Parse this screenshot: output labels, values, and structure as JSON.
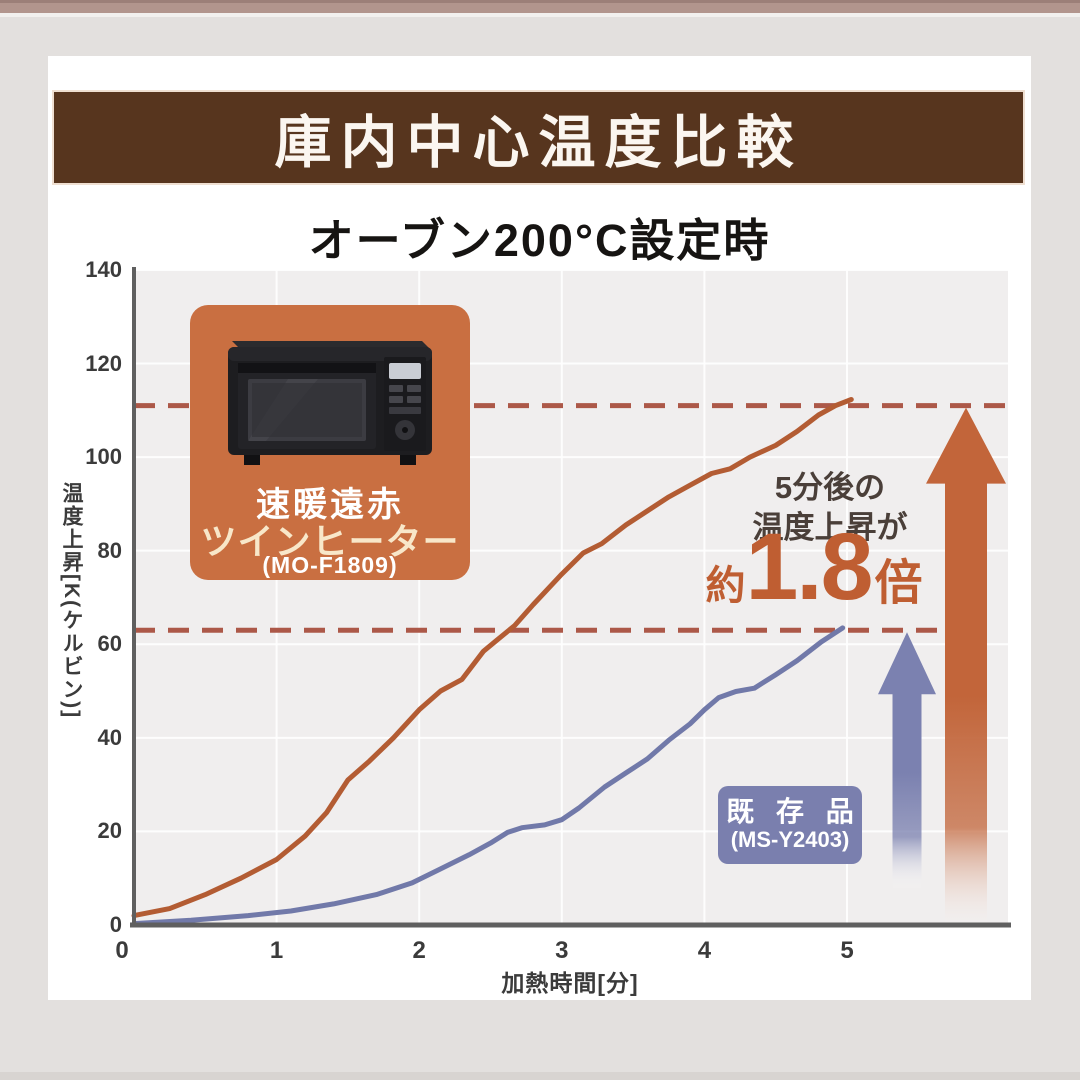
{
  "page": {
    "top_strip_color": "#b2958d",
    "background_color": "#e3e0de",
    "card_color": "#ffffff"
  },
  "header": {
    "title": "庫内中心温度比較",
    "background": "#57351e",
    "text_color": "#fbf6f0"
  },
  "subtitle": "オーブン200°C設定時",
  "chart_data": {
    "type": "line",
    "title": "庫内中心温度比較",
    "subtitle": "オーブン200°C設定時",
    "xlabel": "加熱時間[分]",
    "ylabel": "温度上昇[K(ケルビン)]",
    "xlim": [
      0,
      6.1
    ],
    "ylim": [
      0,
      140
    ],
    "x_ticks": [
      0,
      1,
      2,
      3,
      4,
      5
    ],
    "y_ticks": [
      0,
      20,
      40,
      60,
      80,
      100,
      120,
      140
    ],
    "grid": true,
    "plot_background": "#f0eeee",
    "gridline_color": "#ffffff",
    "axis_color": "#5f5f5f",
    "tick_color": "#3b3b3b",
    "reference_lines": [
      {
        "y": 111,
        "color": "#ac5848",
        "style": "dashed",
        "meaning": "twin-heater rise after 5 min"
      },
      {
        "y": 63,
        "color": "#ac5848",
        "style": "dashed",
        "meaning": "legacy rise after 5 min"
      }
    ],
    "series": [
      {
        "name": "速暖遠赤ツインヒーター (MO-F1809)",
        "color": "#b35c33",
        "points": [
          [
            0,
            2
          ],
          [
            0.25,
            3.5
          ],
          [
            0.5,
            6.5
          ],
          [
            0.75,
            10
          ],
          [
            1,
            14
          ],
          [
            1.2,
            19
          ],
          [
            1.35,
            24
          ],
          [
            1.5,
            31
          ],
          [
            1.65,
            35
          ],
          [
            1.82,
            40
          ],
          [
            2.0,
            46
          ],
          [
            2.15,
            50
          ],
          [
            2.3,
            52.5
          ],
          [
            2.45,
            58.5
          ],
          [
            2.55,
            61
          ],
          [
            2.67,
            64
          ],
          [
            2.8,
            68.5
          ],
          [
            3.0,
            75
          ],
          [
            3.15,
            79.5
          ],
          [
            3.28,
            81.5
          ],
          [
            3.45,
            85.5
          ],
          [
            3.6,
            88.5
          ],
          [
            3.75,
            91.5
          ],
          [
            3.9,
            94
          ],
          [
            4.05,
            96.5
          ],
          [
            4.18,
            97.5
          ],
          [
            4.32,
            100
          ],
          [
            4.5,
            102.5
          ],
          [
            4.65,
            105.5
          ],
          [
            4.8,
            109
          ],
          [
            4.92,
            111
          ],
          [
            5.03,
            112.3
          ]
        ]
      },
      {
        "name": "既存品 (MS-Y2403)",
        "color": "#7179a9",
        "points": [
          [
            0,
            0.3
          ],
          [
            0.4,
            1
          ],
          [
            0.8,
            2
          ],
          [
            1.1,
            3
          ],
          [
            1.4,
            4.5
          ],
          [
            1.7,
            6.5
          ],
          [
            1.95,
            9
          ],
          [
            2.15,
            12
          ],
          [
            2.35,
            15
          ],
          [
            2.5,
            17.5
          ],
          [
            2.62,
            19.8
          ],
          [
            2.72,
            20.8
          ],
          [
            2.88,
            21.4
          ],
          [
            3.0,
            22.5
          ],
          [
            3.12,
            25
          ],
          [
            3.3,
            29.5
          ],
          [
            3.45,
            32.5
          ],
          [
            3.6,
            35.5
          ],
          [
            3.75,
            39.5
          ],
          [
            3.9,
            43
          ],
          [
            4.0,
            46
          ],
          [
            4.1,
            48.6
          ],
          [
            4.22,
            49.9
          ],
          [
            4.35,
            50.6
          ],
          [
            4.5,
            53.5
          ],
          [
            4.65,
            56.5
          ],
          [
            4.82,
            60.5
          ],
          [
            4.97,
            63.5
          ]
        ]
      }
    ],
    "arrows": [
      {
        "color": "#c2653a",
        "points_to_y": 111,
        "label": "twin-heater result"
      },
      {
        "color": "#7b81b0",
        "points_to_y": 63,
        "label": "legacy result"
      }
    ],
    "legend_position": "in-plot labels"
  },
  "annotation": {
    "line1": "5分後の",
    "line2": "温度上昇が",
    "approx": "約",
    "value": "1.8",
    "suffix": "倍",
    "text_color": "#4a3f39",
    "highlight_color": "#bf5e32"
  },
  "product_box": {
    "background": "#c96f41",
    "line1": "速暖遠赤",
    "line2": "ツインヒーター",
    "model": "(MO-F1809)"
  },
  "legacy_box": {
    "background": "#7a7fae",
    "label": "既 存 品",
    "model": "(MS-Y2403)"
  }
}
